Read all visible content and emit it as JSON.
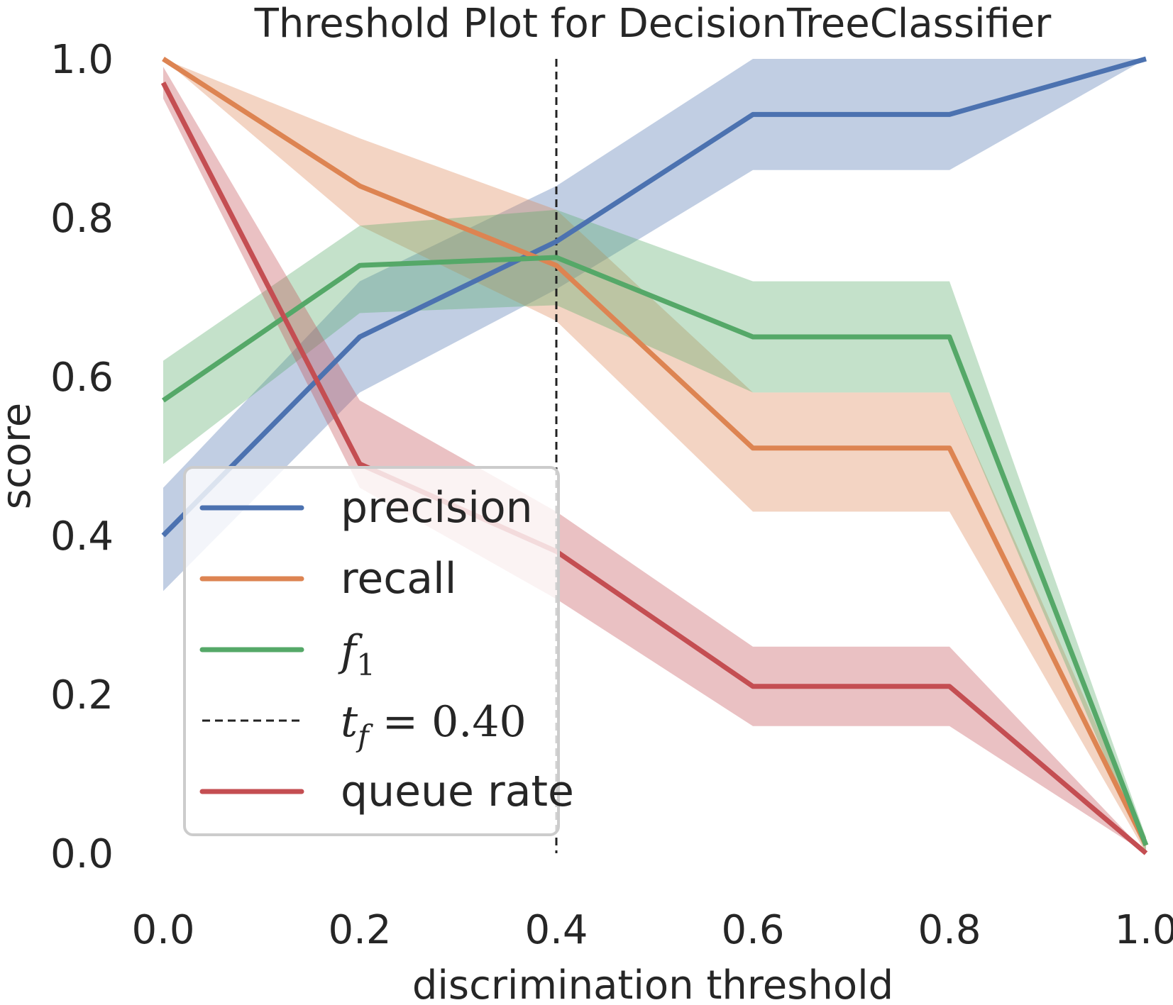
{
  "chart_data": {
    "type": "line",
    "title": "Threshold Plot for DecisionTreeClassifier",
    "xlabel": "discrimination threshold",
    "ylabel": "score",
    "xlim": [
      0.0,
      1.0
    ],
    "ylim": [
      0.0,
      1.0
    ],
    "x_ticks": [
      "0.0",
      "0.2",
      "0.4",
      "0.6",
      "0.8",
      "1.0"
    ],
    "y_ticks": [
      "0.0",
      "0.2",
      "0.4",
      "0.6",
      "0.8",
      "1.0"
    ],
    "grid": false,
    "legend_position": "lower-left",
    "x": [
      0.0,
      0.2,
      0.4,
      0.6,
      0.8,
      1.0
    ],
    "series": [
      {
        "name": "precision",
        "color": "#4c72b0",
        "values": [
          0.4,
          0.65,
          0.77,
          0.93,
          0.93,
          1.0
        ],
        "lower": [
          0.33,
          0.58,
          0.71,
          0.86,
          0.86,
          1.0
        ],
        "upper": [
          0.46,
          0.72,
          0.84,
          1.0,
          1.0,
          1.0
        ]
      },
      {
        "name": "recall",
        "color": "#dd8452",
        "values": [
          1.0,
          0.84,
          0.74,
          0.51,
          0.51,
          0.01
        ],
        "lower": [
          1.0,
          0.79,
          0.67,
          0.43,
          0.43,
          0.0
        ],
        "upper": [
          1.0,
          0.9,
          0.81,
          0.58,
          0.58,
          0.02
        ]
      },
      {
        "name": "f_1",
        "label_base": "f",
        "label_sub": "1",
        "color": "#55a868",
        "values": [
          0.57,
          0.74,
          0.75,
          0.65,
          0.65,
          0.01
        ],
        "lower": [
          0.49,
          0.68,
          0.69,
          0.58,
          0.58,
          0.0
        ],
        "upper": [
          0.62,
          0.79,
          0.81,
          0.72,
          0.72,
          0.02
        ]
      },
      {
        "name": "queue rate",
        "color": "#c44e52",
        "values": [
          0.97,
          0.49,
          0.38,
          0.21,
          0.21,
          0.0
        ],
        "lower": [
          0.95,
          0.46,
          0.32,
          0.16,
          0.16,
          0.0
        ],
        "upper": [
          0.99,
          0.57,
          0.43,
          0.26,
          0.26,
          0.0
        ]
      }
    ],
    "threshold_line": {
      "x": 0.4,
      "label_base": "t",
      "label_sub": "f",
      "label_rest": " = 0.40",
      "color": "#222222",
      "style": "dashed"
    },
    "legend_order": [
      "precision",
      "recall",
      "f_1",
      "threshold",
      "queue rate"
    ]
  }
}
